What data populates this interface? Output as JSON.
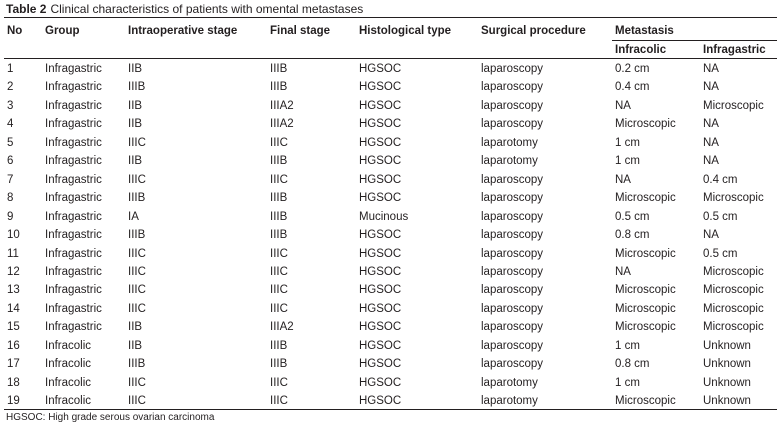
{
  "caption": {
    "label": "Table 2",
    "text": "Clinical characteristics of patients with omental metastases"
  },
  "headers": {
    "no": "No",
    "group": "Group",
    "intraoperative_stage": "Intraoperative stage",
    "final_stage": "Final stage",
    "histological_type": "Histological type",
    "surgical_procedure": "Surgical procedure",
    "metastasis": "Metastasis",
    "infracolic": "Infracolic",
    "infragastric": "Infragastric"
  },
  "rows": [
    {
      "no": "1",
      "group": "Infragastric",
      "intra": "IIB",
      "final": "IIIB",
      "hist": "HGSOC",
      "surg": "laparoscopy",
      "infracolic": "0.2 cm",
      "infragastric": "NA"
    },
    {
      "no": "2",
      "group": "Infragastric",
      "intra": "IIIB",
      "final": "IIIB",
      "hist": "HGSOC",
      "surg": "laparoscopy",
      "infracolic": "0.4 cm",
      "infragastric": "NA"
    },
    {
      "no": "3",
      "group": "Infragastric",
      "intra": "IIB",
      "final": "IIIA2",
      "hist": "HGSOC",
      "surg": "laparoscopy",
      "infracolic": "NA",
      "infragastric": "Microscopic"
    },
    {
      "no": "4",
      "group": "Infragastric",
      "intra": "IIB",
      "final": "IIIA2",
      "hist": "HGSOC",
      "surg": "laparoscopy",
      "infracolic": "Microscopic",
      "infragastric": "NA"
    },
    {
      "no": "5",
      "group": "Infragastric",
      "intra": "IIIC",
      "final": "IIIC",
      "hist": "HGSOC",
      "surg": "laparotomy",
      "infracolic": "1 cm",
      "infragastric": "NA"
    },
    {
      "no": "6",
      "group": "Infragastric",
      "intra": "IIB",
      "final": "IIIB",
      "hist": "HGSOC",
      "surg": "laparotomy",
      "infracolic": "1 cm",
      "infragastric": "NA"
    },
    {
      "no": "7",
      "group": "Infragastric",
      "intra": "IIIC",
      "final": "IIIC",
      "hist": "HGSOC",
      "surg": "laparoscopy",
      "infracolic": "NA",
      "infragastric": "0.4 cm"
    },
    {
      "no": "8",
      "group": "Infragastric",
      "intra": "IIIB",
      "final": "IIIB",
      "hist": "HGSOC",
      "surg": "laparoscopy",
      "infracolic": "Microscopic",
      "infragastric": "Microscopic"
    },
    {
      "no": "9",
      "group": "Infragastric",
      "intra": "IA",
      "final": "IIIB",
      "hist": "Mucinous",
      "surg": "laparoscopy",
      "infracolic": "0.5 cm",
      "infragastric": "0.5 cm"
    },
    {
      "no": "10",
      "group": "Infragastric",
      "intra": "IIIB",
      "final": "IIIB",
      "hist": "HGSOC",
      "surg": "laparoscopy",
      "infracolic": "0.8 cm",
      "infragastric": "NA"
    },
    {
      "no": "11",
      "group": "Infragastric",
      "intra": "IIIC",
      "final": "IIIC",
      "hist": "HGSOC",
      "surg": "laparoscopy",
      "infracolic": "Microscopic",
      "infragastric": "0.5 cm"
    },
    {
      "no": "12",
      "group": "Infragastric",
      "intra": "IIIC",
      "final": "IIIC",
      "hist": "HGSOC",
      "surg": "laparoscopy",
      "infracolic": "NA",
      "infragastric": "Microscopic"
    },
    {
      "no": "13",
      "group": "Infragastric",
      "intra": "IIIC",
      "final": "IIIC",
      "hist": "HGSOC",
      "surg": "laparoscopy",
      "infracolic": "Microscopic",
      "infragastric": "Microscopic"
    },
    {
      "no": "14",
      "group": "Infragastric",
      "intra": "IIIC",
      "final": "IIIC",
      "hist": "HGSOC",
      "surg": "laparoscopy",
      "infracolic": "Microscopic",
      "infragastric": "Microscopic"
    },
    {
      "no": "15",
      "group": "Infragastric",
      "intra": "IIB",
      "final": "IIIA2",
      "hist": "HGSOC",
      "surg": "laparoscopy",
      "infracolic": "Microscopic",
      "infragastric": "Microscopic"
    },
    {
      "no": "16",
      "group": "Infracolic",
      "intra": "IIB",
      "final": "IIIB",
      "hist": "HGSOC",
      "surg": "laparoscopy",
      "infracolic": "1 cm",
      "infragastric": "Unknown"
    },
    {
      "no": "17",
      "group": "Infracolic",
      "intra": "IIIB",
      "final": "IIIB",
      "hist": "HGSOC",
      "surg": "laparoscopy",
      "infracolic": "0.8 cm",
      "infragastric": "Unknown"
    },
    {
      "no": "18",
      "group": "Infracolic",
      "intra": "IIIC",
      "final": "IIIC",
      "hist": "HGSOC",
      "surg": "laparotomy",
      "infracolic": "1 cm",
      "infragastric": "Unknown"
    },
    {
      "no": "19",
      "group": "Infracolic",
      "intra": "IIIC",
      "final": "IIIC",
      "hist": "HGSOC",
      "surg": "laparotomy",
      "infracolic": "Microscopic",
      "infragastric": "Unknown"
    }
  ],
  "footnote": "HGSOC: High grade serous ovarian carcinoma"
}
